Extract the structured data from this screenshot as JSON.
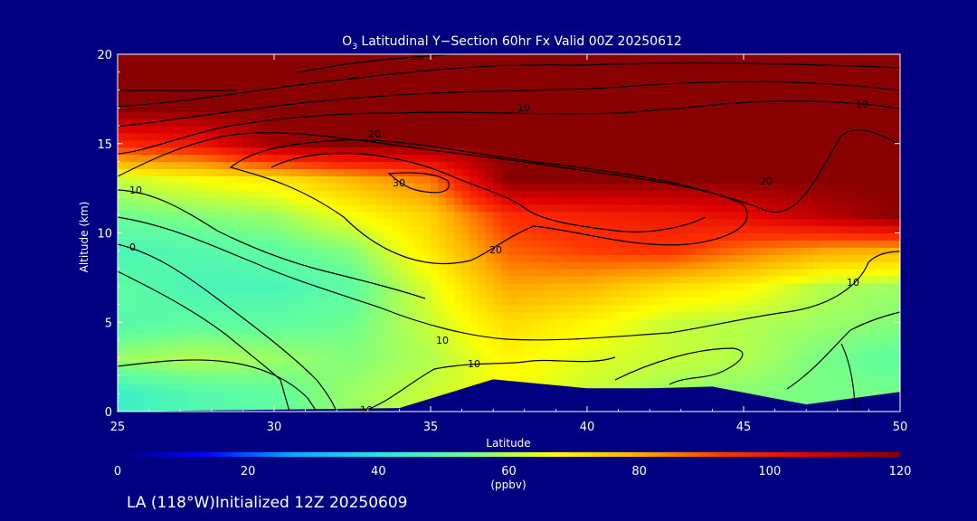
{
  "chart_data": {
    "type": "heatmap",
    "title": "O3 Latitudinal Y-Section 60hr  Fx Valid 00Z 20250612",
    "title_main": "O",
    "title_sub": "3",
    "title_rest": " Latitudinal Y−Section 60hr  Fx Valid 00Z 20250612",
    "xlabel": "Latitude",
    "ylabel": "Altitude (km)",
    "xlim": [
      25,
      50
    ],
    "ylim": [
      0,
      20
    ],
    "x_ticks": [
      "25",
      "30",
      "35",
      "40",
      "45",
      "50"
    ],
    "y_ticks": [
      "0",
      "5",
      "10",
      "15",
      "20"
    ],
    "colorbar": {
      "min": 0,
      "max": 120,
      "ticks": [
        "0",
        "20",
        "40",
        "60",
        "80",
        "100",
        "120"
      ],
      "unit": "(ppbv)",
      "colors": [
        "#000080",
        "#0000ff",
        "#00aaff",
        "#22e6e6",
        "#66ff99",
        "#ffff00",
        "#ffaa00",
        "#ff3300",
        "#dd0000",
        "#880000"
      ]
    },
    "field_lat": [
      25,
      27.5,
      30,
      32.5,
      35,
      37.5,
      40,
      42.5,
      45,
      47.5,
      50
    ],
    "field_alt": [
      1,
      3,
      5,
      7,
      9,
      11,
      13,
      15,
      17,
      19
    ],
    "field_values": [
      [
        45,
        50,
        52,
        58,
        62,
        66,
        62,
        58,
        56,
        55,
        55
      ],
      [
        58,
        60,
        58,
        56,
        60,
        68,
        64,
        62,
        60,
        55,
        52
      ],
      [
        50,
        52,
        52,
        54,
        62,
        72,
        68,
        62,
        60,
        58,
        56
      ],
      [
        52,
        48,
        48,
        52,
        64,
        80,
        78,
        72,
        68,
        60,
        58
      ],
      [
        48,
        50,
        52,
        56,
        70,
        88,
        92,
        94,
        86,
        80,
        78
      ],
      [
        54,
        56,
        58,
        66,
        74,
        95,
        98,
        100,
        104,
        112,
        120
      ],
      [
        62,
        66,
        70,
        78,
        86,
        120,
        120,
        120,
        120,
        120,
        120
      ],
      [
        96,
        100,
        116,
        120,
        120,
        120,
        120,
        120,
        120,
        120,
        120
      ],
      [
        120,
        120,
        120,
        120,
        120,
        120,
        120,
        120,
        120,
        120,
        120
      ],
      [
        120,
        120,
        120,
        120,
        120,
        120,
        120,
        120,
        120,
        120,
        120
      ]
    ],
    "terrain": [
      [
        25,
        0
      ],
      [
        34,
        0.2
      ],
      [
        37,
        1.8
      ],
      [
        40,
        1.3
      ],
      [
        42,
        1.3
      ],
      [
        44,
        1.4
      ],
      [
        47,
        0.4
      ],
      [
        50,
        1.1
      ]
    ],
    "contour_labels": [
      "0",
      "10",
      "10",
      "10",
      "10",
      "10",
      "10",
      "10",
      "20",
      "20",
      "20",
      "20",
      "30"
    ],
    "footer": "LA (118°W)Initialized 12Z 20250609"
  }
}
